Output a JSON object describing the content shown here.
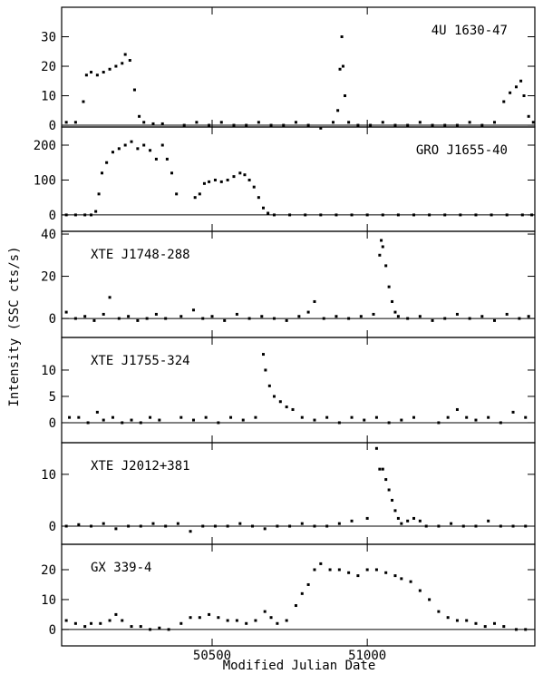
{
  "chart_data": [
    {
      "type": "scatter",
      "title": "4U 1630-47",
      "xlim": [
        50015,
        51540
      ],
      "xticks": [
        50500,
        51000
      ],
      "ylim": [
        -0.6,
        40
      ],
      "yticks": [
        0,
        10,
        20,
        30
      ],
      "x": [
        50030,
        50060,
        50085,
        50095,
        50110,
        50130,
        50150,
        50170,
        50190,
        50210,
        50220,
        50235,
        50250,
        50265,
        50280,
        50310,
        50340,
        50410,
        50450,
        50490,
        50530,
        50570,
        50610,
        50650,
        50690,
        50730,
        50770,
        50810,
        50850,
        50890,
        50905,
        50912,
        50918,
        50922,
        50928,
        50940,
        50970,
        51010,
        51050,
        51090,
        51130,
        51170,
        51210,
        51250,
        51290,
        51330,
        51370,
        51410,
        51440,
        51460,
        51480,
        51495,
        51505,
        51520,
        51535
      ],
      "values": [
        1,
        1,
        8,
        17,
        18,
        17,
        18,
        19,
        20,
        21,
        24,
        22,
        12,
        3,
        1,
        0.5,
        0.5,
        0,
        1,
        0,
        1,
        0,
        0,
        1,
        0,
        0,
        1,
        0,
        -1,
        1,
        5,
        19,
        30,
        20,
        10,
        1,
        0,
        0,
        1,
        0,
        0,
        1,
        0,
        0,
        0,
        1,
        0,
        1,
        8,
        11,
        13,
        15,
        10,
        3,
        1
      ]
    },
    {
      "type": "scatter",
      "title": "GRO J1655-40",
      "xlim": [
        50015,
        51540
      ],
      "xticks": [
        50500,
        51000
      ],
      "ylim": [
        -47,
        252
      ],
      "yticks": [
        0,
        100,
        200
      ],
      "x": [
        50030,
        50060,
        50090,
        50110,
        50125,
        50135,
        50145,
        50160,
        50180,
        50200,
        50220,
        50240,
        50260,
        50280,
        50300,
        50320,
        50340,
        50355,
        50370,
        50385,
        50445,
        50460,
        50475,
        50490,
        50510,
        50530,
        50550,
        50570,
        50590,
        50605,
        50620,
        50635,
        50650,
        50665,
        50680,
        50700,
        50750,
        50800,
        50850,
        50900,
        50950,
        51000,
        51050,
        51100,
        51150,
        51200,
        51250,
        51300,
        51350,
        51400,
        51450,
        51500,
        51530
      ],
      "values": [
        0,
        0,
        0,
        0,
        10,
        60,
        120,
        150,
        180,
        190,
        200,
        210,
        190,
        200,
        185,
        160,
        200,
        160,
        120,
        60,
        50,
        60,
        90,
        95,
        100,
        95,
        100,
        110,
        120,
        115,
        100,
        80,
        50,
        20,
        5,
        0,
        0,
        0,
        0,
        0,
        0,
        0,
        0,
        0,
        0,
        0,
        0,
        0,
        0,
        0,
        0,
        0,
        0
      ]
    },
    {
      "type": "scatter",
      "title": "XTE J1748-288",
      "xlim": [
        50015,
        51540
      ],
      "xticks": [
        50500,
        51000
      ],
      "ylim": [
        -9,
        41.3
      ],
      "yticks": [
        0,
        20,
        40
      ],
      "x": [
        50030,
        50060,
        50090,
        50120,
        50150,
        50170,
        50200,
        50230,
        50260,
        50290,
        50320,
        50350,
        50400,
        50440,
        50470,
        50500,
        50540,
        50580,
        50620,
        50660,
        50700,
        50740,
        50780,
        50810,
        50830,
        50860,
        50900,
        50940,
        50980,
        51020,
        51040,
        51045,
        51050,
        51060,
        51070,
        51080,
        51090,
        51100,
        51130,
        51170,
        51210,
        51250,
        51290,
        51330,
        51370,
        51410,
        51450,
        51490,
        51520
      ],
      "values": [
        3,
        0,
        1,
        -1,
        2,
        10,
        0,
        1,
        -1,
        0,
        2,
        0,
        1,
        4,
        0,
        1,
        -1,
        2,
        0,
        1,
        0,
        -1,
        1,
        3,
        8,
        0,
        1,
        0,
        1,
        2,
        30,
        37,
        34,
        25,
        15,
        8,
        3,
        1,
        0,
        1,
        -1,
        0,
        2,
        0,
        1,
        -1,
        2,
        0,
        1
      ]
    },
    {
      "type": "scatter",
      "title": "XTE J1755-324",
      "xlim": [
        50015,
        51540
      ],
      "xticks": [
        50500,
        51000
      ],
      "ylim": [
        -3.8,
        16.2
      ],
      "yticks": [
        0,
        5,
        10
      ],
      "x": [
        50040,
        50070,
        50100,
        50130,
        50150,
        50180,
        50210,
        50240,
        50270,
        50300,
        50330,
        50400,
        50440,
        50480,
        50520,
        50560,
        50600,
        50640,
        50665,
        50672,
        50685,
        50700,
        50720,
        50740,
        50760,
        50790,
        50830,
        50870,
        50910,
        50950,
        50990,
        51030,
        51070,
        51110,
        51150,
        51230,
        51260,
        51290,
        51320,
        51350,
        51390,
        51430,
        51470,
        51510
      ],
      "values": [
        1,
        1,
        0,
        2,
        0.5,
        1,
        0,
        0.5,
        0,
        1,
        0.5,
        1,
        0.5,
        1,
        0,
        1,
        0.5,
        1,
        13,
        10,
        7,
        5,
        4,
        3,
        2.5,
        1,
        0.5,
        1,
        0,
        1,
        0.5,
        1,
        0,
        0.5,
        1,
        0,
        1,
        2.5,
        1,
        0.5,
        1,
        0,
        2,
        1
      ]
    },
    {
      "type": "scatter",
      "title": "XTE J2012+381",
      "xlim": [
        50015,
        51540
      ],
      "xticks": [
        50500,
        51000
      ],
      "ylim": [
        -3.5,
        16.1
      ],
      "yticks": [
        0,
        10
      ],
      "x": [
        50030,
        50070,
        50110,
        50150,
        50190,
        50230,
        50270,
        50310,
        50350,
        50390,
        50430,
        50470,
        50510,
        50550,
        50590,
        50630,
        50670,
        50710,
        50750,
        50790,
        50830,
        50870,
        50910,
        50950,
        51000,
        51030,
        51040,
        51050,
        51060,
        51070,
        51080,
        51090,
        51100,
        51110,
        51130,
        51150,
        51170,
        51190,
        51230,
        51270,
        51310,
        51350,
        51390,
        51430,
        51470,
        51510
      ],
      "values": [
        0,
        0.3,
        0,
        0.5,
        -0.5,
        0,
        0,
        0.5,
        0,
        0.5,
        -1,
        0,
        0,
        0,
        0.5,
        0,
        -0.5,
        0,
        0,
        0.5,
        0,
        0,
        0.5,
        1,
        1.5,
        15,
        11,
        11,
        9,
        7,
        5,
        3,
        1.5,
        0.5,
        1,
        1.5,
        1,
        0,
        0,
        0.5,
        0,
        0,
        1,
        0,
        0,
        0
      ]
    },
    {
      "type": "scatter",
      "title": "GX 339-4",
      "xlim": [
        50015,
        51540
      ],
      "xticks": [
        50500,
        51000
      ],
      "ylim": [
        -5.5,
        28.5
      ],
      "yticks": [
        0,
        10,
        20
      ],
      "x": [
        50030,
        50060,
        50090,
        50110,
        50140,
        50170,
        50190,
        50210,
        50240,
        50270,
        50300,
        50330,
        50360,
        50400,
        50430,
        50460,
        50490,
        50520,
        50550,
        50580,
        50610,
        50640,
        50670,
        50690,
        50710,
        50740,
        50770,
        50790,
        50810,
        50830,
        50850,
        50880,
        50910,
        50940,
        50970,
        51000,
        51030,
        51060,
        51090,
        51110,
        51140,
        51170,
        51200,
        51230,
        51260,
        51290,
        51320,
        51350,
        51380,
        51410,
        51440,
        51480,
        51510
      ],
      "values": [
        3,
        2,
        1,
        2,
        2,
        3,
        5,
        3,
        1,
        1,
        0,
        0.5,
        0,
        2,
        4,
        4,
        5,
        4,
        3,
        3,
        2,
        3,
        6,
        4,
        2,
        3,
        8,
        12,
        15,
        20,
        22,
        20,
        20,
        19,
        18,
        20,
        20,
        19,
        18,
        17,
        16,
        13,
        10,
        6,
        4,
        3,
        3,
        2,
        1,
        2,
        1,
        0,
        0
      ]
    }
  ],
  "xlabel": "Modified Julian Date",
  "ylabel": "Intensity (SSC cts/s)"
}
